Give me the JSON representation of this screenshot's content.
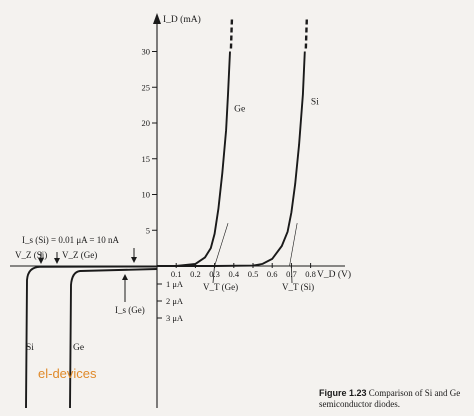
{
  "chart_data": {
    "type": "line",
    "title": "",
    "xlabel": "V_D (V)",
    "ylabel": "I_D (mA)",
    "xlim": [
      -0.15,
      0.85
    ],
    "ylim": [
      0,
      32
    ],
    "x_ticks": [
      0.1,
      0.2,
      0.3,
      0.4,
      0.5,
      0.6,
      0.7,
      0.8
    ],
    "x_tick_labels": [
      "0.1",
      "0.2",
      "0.3",
      "0.4",
      "0.5",
      "0.6",
      "0.7",
      "0.8"
    ],
    "y_ticks": [
      5,
      10,
      15,
      20,
      25,
      30
    ],
    "y_tick_labels": [
      "5",
      "10",
      "15",
      "20",
      "25",
      "30"
    ],
    "reverse_current_ticks": [
      "1 μA",
      "2 μA",
      "3 μA"
    ],
    "grid": false,
    "series": [
      {
        "name": "Ge",
        "x": [
          0.0,
          0.1,
          0.2,
          0.25,
          0.28,
          0.3,
          0.32,
          0.34,
          0.36,
          0.37,
          0.38
        ],
        "y": [
          0.0,
          0.02,
          0.3,
          1.2,
          2.5,
          4.5,
          8.0,
          13.0,
          19.0,
          24.0,
          30.0
        ]
      },
      {
        "name": "Si",
        "x": [
          0.0,
          0.3,
          0.5,
          0.55,
          0.6,
          0.65,
          0.68,
          0.7,
          0.72,
          0.74,
          0.76,
          0.77
        ],
        "y": [
          0.0,
          0.0,
          0.05,
          0.3,
          1.0,
          2.8,
          4.8,
          7.5,
          11.5,
          17.0,
          24.0,
          30.0
        ]
      }
    ],
    "annotations": {
      "is_si": "I_s (Si) = 0.01 μA = 10 nA",
      "vz_si": "V_Z (Si)",
      "vz_ge": "V_Z (Ge)",
      "is_ge": "I_s (Ge)",
      "vt_ge": "V_T (Ge)",
      "vt_si": "V_T (Si)",
      "ge_lower": "Ge",
      "si_lower": "Si"
    }
  },
  "caption": {
    "label": "Figure 1.23",
    "text": "Comparison of Si and Ge semiconductor diodes."
  },
  "watermark": "el-devices",
  "colors": {
    "ink": "#1a1a1a",
    "background": "#f4f2ef",
    "watermark": "#e08a2a"
  }
}
